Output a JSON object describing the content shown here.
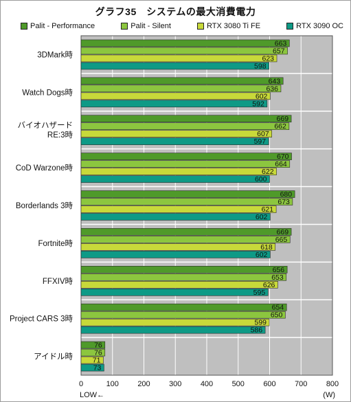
{
  "title": "グラフ35　システムの最大消費電力",
  "colors": {
    "plot_bg": "#bfbfbf",
    "grid": "#ffffff",
    "value_text": "#111111"
  },
  "chart_data": {
    "type": "bar",
    "orientation": "horizontal",
    "title": "グラフ35　システムの最大消費電力",
    "categories": [
      "3DMark時",
      "Watch Dogs時",
      "バイオハザード\nRE:3時",
      "CoD Warzone時",
      "Borderlands 3時",
      "Fortnite時",
      "FFXIV時",
      "Project CARS 3時",
      "アイドル時"
    ],
    "series": [
      {
        "name": "Palit - Performance",
        "color": "#4f9a2a",
        "values": [
          663,
          643,
          669,
          670,
          680,
          669,
          656,
          654,
          76
        ]
      },
      {
        "name": "Palit - Silent",
        "color": "#8cc63f",
        "values": [
          657,
          636,
          662,
          664,
          673,
          665,
          653,
          650,
          76
        ]
      },
      {
        "name": "RTX 3080 Ti FE",
        "color": "#c8d93a",
        "values": [
          623,
          602,
          607,
          622,
          621,
          618,
          626,
          599,
          71
        ]
      },
      {
        "name": "RTX 3090 OC",
        "color": "#0e9a86",
        "values": [
          598,
          592,
          597,
          600,
          602,
          602,
          595,
          586,
          73
        ]
      }
    ],
    "xlim": [
      0,
      800
    ],
    "xticks": [
      0,
      100,
      200,
      300,
      400,
      500,
      600,
      700,
      800
    ],
    "xunit": "(W)",
    "xnote": "LOW←",
    "grid": true,
    "legend_position": "top"
  }
}
